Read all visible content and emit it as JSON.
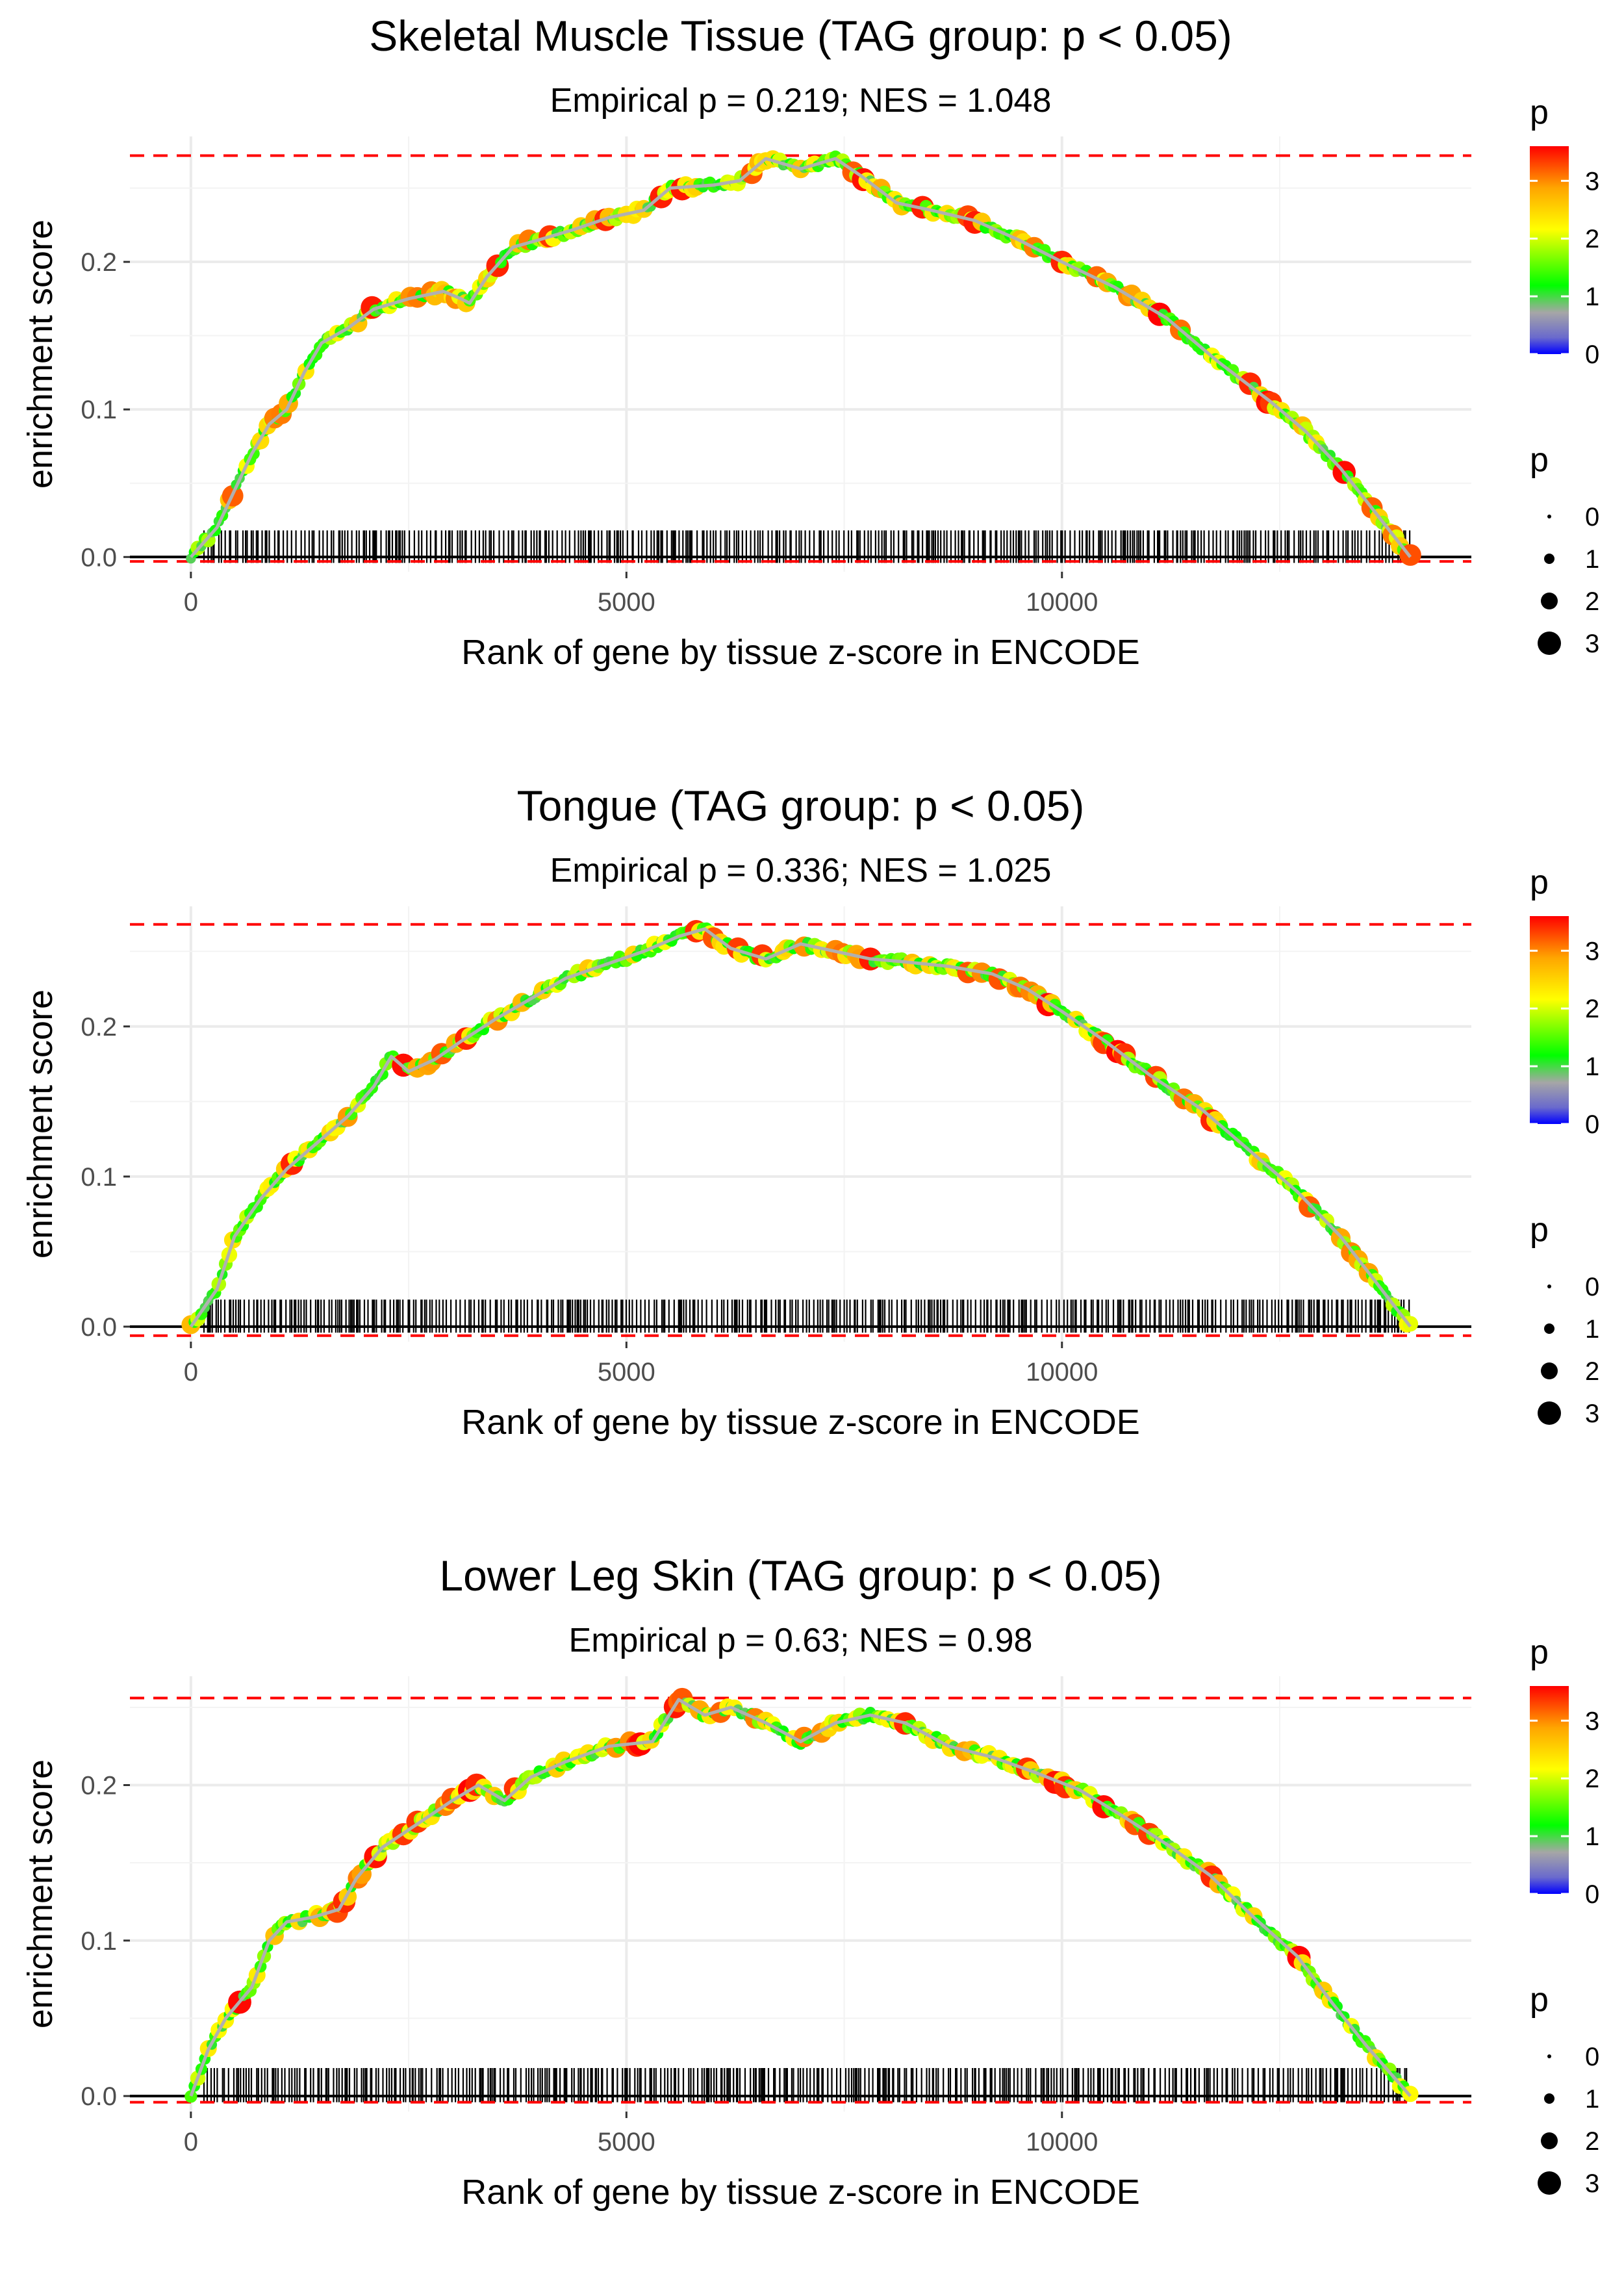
{
  "chart_data": [
    {
      "type": "line",
      "title": "Skeletal Muscle Tissue (TAG group: p < 0.05)",
      "subtitle": "Empirical p = 0.219; NES = 1.048",
      "xlabel": "Rank of gene by tissue z-score in ENCODE",
      "ylabel": "enrichment score",
      "xlim": [
        -700,
        14700
      ],
      "ylim": [
        -0.01,
        0.285
      ],
      "xticks": [
        0,
        5000,
        10000
      ],
      "xtick_labels": [
        "0",
        "5000",
        "10000"
      ],
      "yticks": [
        0.0,
        0.1,
        0.2
      ],
      "ytick_labels": [
        "0.0",
        "0.1",
        "0.2"
      ],
      "ref_lines": {
        "max": 0.272,
        "min": -0.003
      },
      "curve": [
        [
          0,
          0
        ],
        [
          300,
          0.02
        ],
        [
          500,
          0.045
        ],
        [
          700,
          0.07
        ],
        [
          900,
          0.09
        ],
        [
          1100,
          0.1
        ],
        [
          1300,
          0.125
        ],
        [
          1500,
          0.145
        ],
        [
          1800,
          0.155
        ],
        [
          2100,
          0.168
        ],
        [
          2500,
          0.175
        ],
        [
          2900,
          0.18
        ],
        [
          3100,
          0.175
        ],
        [
          3200,
          0.172
        ],
        [
          3400,
          0.19
        ],
        [
          3700,
          0.21
        ],
        [
          4000,
          0.215
        ],
        [
          4400,
          0.222
        ],
        [
          4800,
          0.23
        ],
        [
          5200,
          0.235
        ],
        [
          5500,
          0.25
        ],
        [
          6000,
          0.252
        ],
        [
          6300,
          0.255
        ],
        [
          6600,
          0.27
        ],
        [
          7000,
          0.263
        ],
        [
          7400,
          0.27
        ],
        [
          7700,
          0.258
        ],
        [
          8100,
          0.24
        ],
        [
          8500,
          0.235
        ],
        [
          9000,
          0.228
        ],
        [
          9500,
          0.215
        ],
        [
          10000,
          0.2
        ],
        [
          10600,
          0.183
        ],
        [
          11200,
          0.162
        ],
        [
          11800,
          0.132
        ],
        [
          12400,
          0.105
        ],
        [
          12800,
          0.085
        ],
        [
          13200,
          0.06
        ],
        [
          13600,
          0.03
        ],
        [
          14000,
          0
        ]
      ],
      "colorbar": {
        "title": "p",
        "ticks": [
          "0",
          "1",
          "2",
          "3"
        ],
        "max": 3.6
      },
      "size_legend": {
        "title": "p",
        "labels": [
          "0",
          "1",
          "2",
          "3"
        ]
      },
      "colors": {
        "ref_line": "#ff0000",
        "axis": "#000000",
        "grid": "#ebebeb"
      }
    },
    {
      "type": "line",
      "title": "Tongue (TAG group: p < 0.05)",
      "subtitle": "Empirical p = 0.336; NES = 1.025",
      "xlabel": "Rank of gene by tissue z-score in ENCODE",
      "ylabel": "enrichment score",
      "xlim": [
        -700,
        14700
      ],
      "ylim": [
        -0.01,
        0.28
      ],
      "xticks": [
        0,
        5000,
        10000
      ],
      "xtick_labels": [
        "0",
        "5000",
        "10000"
      ],
      "yticks": [
        0.0,
        0.1,
        0.2
      ],
      "ytick_labels": [
        "0.0",
        "0.1",
        "0.2"
      ],
      "ref_lines": {
        "max": 0.268,
        "min": -0.006
      },
      "curve": [
        [
          0,
          0
        ],
        [
          300,
          0.025
        ],
        [
          500,
          0.06
        ],
        [
          800,
          0.085
        ],
        [
          1100,
          0.105
        ],
        [
          1400,
          0.12
        ],
        [
          1800,
          0.14
        ],
        [
          2100,
          0.16
        ],
        [
          2300,
          0.18
        ],
        [
          2500,
          0.17
        ],
        [
          2800,
          0.178
        ],
        [
          3100,
          0.19
        ],
        [
          3500,
          0.205
        ],
        [
          3800,
          0.215
        ],
        [
          4300,
          0.232
        ],
        [
          4700,
          0.24
        ],
        [
          5200,
          0.25
        ],
        [
          5600,
          0.26
        ],
        [
          5900,
          0.265
        ],
        [
          6200,
          0.252
        ],
        [
          6600,
          0.245
        ],
        [
          7000,
          0.255
        ],
        [
          7400,
          0.25
        ],
        [
          7800,
          0.245
        ],
        [
          8200,
          0.243
        ],
        [
          8700,
          0.24
        ],
        [
          9200,
          0.235
        ],
        [
          9600,
          0.225
        ],
        [
          10000,
          0.21
        ],
        [
          10500,
          0.19
        ],
        [
          11000,
          0.168
        ],
        [
          11600,
          0.145
        ],
        [
          12200,
          0.115
        ],
        [
          12700,
          0.09
        ],
        [
          13200,
          0.06
        ],
        [
          13600,
          0.03
        ],
        [
          14000,
          0
        ]
      ],
      "colorbar": {
        "title": "p",
        "ticks": [
          "0",
          "1",
          "2",
          "3"
        ],
        "max": 3.6
      },
      "size_legend": {
        "title": "p",
        "labels": [
          "0",
          "1",
          "2",
          "3"
        ]
      },
      "colors": {
        "ref_line": "#ff0000",
        "axis": "#000000",
        "grid": "#ebebeb"
      }
    },
    {
      "type": "line",
      "title": "Lower Leg Skin (TAG group: p < 0.05)",
      "subtitle": "Empirical p = 0.63; NES = 0.98",
      "xlabel": "Rank of gene by tissue z-score in ENCODE",
      "ylabel": "enrichment score",
      "xlim": [
        -700,
        14700
      ],
      "ylim": [
        -0.01,
        0.27
      ],
      "xticks": [
        0,
        5000,
        10000
      ],
      "xtick_labels": [
        "0",
        "5000",
        "10000"
      ],
      "yticks": [
        0.0,
        0.1,
        0.2
      ],
      "ytick_labels": [
        "0.0",
        "0.1",
        "0.2"
      ],
      "ref_lines": {
        "max": 0.256,
        "min": -0.004
      },
      "curve": [
        [
          0,
          0
        ],
        [
          200,
          0.03
        ],
        [
          400,
          0.05
        ],
        [
          700,
          0.07
        ],
        [
          900,
          0.1
        ],
        [
          1100,
          0.112
        ],
        [
          1400,
          0.115
        ],
        [
          1700,
          0.12
        ],
        [
          1900,
          0.14
        ],
        [
          2200,
          0.16
        ],
        [
          2600,
          0.175
        ],
        [
          3000,
          0.19
        ],
        [
          3300,
          0.2
        ],
        [
          3600,
          0.19
        ],
        [
          3900,
          0.205
        ],
        [
          4300,
          0.215
        ],
        [
          4800,
          0.225
        ],
        [
          5300,
          0.228
        ],
        [
          5600,
          0.255
        ],
        [
          5900,
          0.245
        ],
        [
          6200,
          0.25
        ],
        [
          6600,
          0.24
        ],
        [
          7000,
          0.228
        ],
        [
          7400,
          0.24
        ],
        [
          7800,
          0.245
        ],
        [
          8200,
          0.24
        ],
        [
          8700,
          0.225
        ],
        [
          9200,
          0.218
        ],
        [
          9700,
          0.208
        ],
        [
          10200,
          0.197
        ],
        [
          10700,
          0.18
        ],
        [
          11200,
          0.162
        ],
        [
          11700,
          0.142
        ],
        [
          12200,
          0.115
        ],
        [
          12700,
          0.09
        ],
        [
          13100,
          0.06
        ],
        [
          13500,
          0.032
        ],
        [
          14000,
          0
        ]
      ],
      "colorbar": {
        "title": "p",
        "ticks": [
          "0",
          "1",
          "2",
          "3"
        ],
        "max": 3.6
      },
      "size_legend": {
        "title": "p",
        "labels": [
          "0",
          "1",
          "2",
          "3"
        ]
      },
      "colors": {
        "ref_line": "#ff0000",
        "axis": "#000000",
        "grid": "#ebebeb"
      }
    }
  ]
}
